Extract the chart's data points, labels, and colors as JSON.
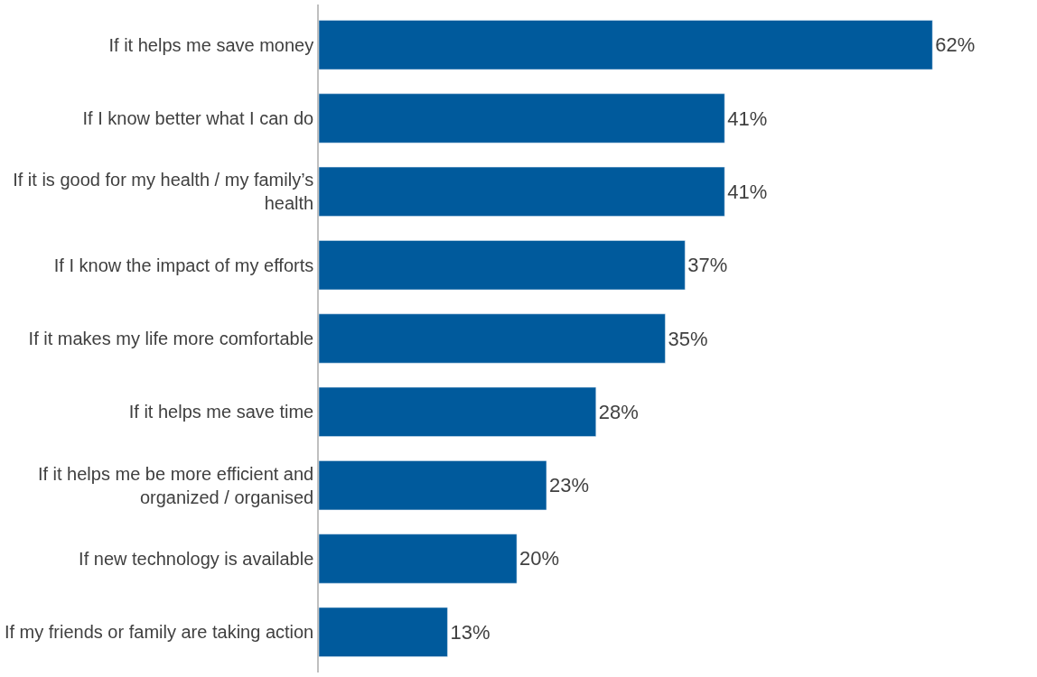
{
  "chart_data": {
    "type": "bar",
    "orientation": "horizontal",
    "categories": [
      "If it helps me save money",
      "If I know better what I can do",
      "If it is good for my health / my family’s health",
      "If I know the impact of my efforts",
      "If it makes my life more comfortable",
      "If it helps me save time",
      "If it helps me be more efficient and organized / organised",
      "If new technology is available",
      "If my friends or family are taking action"
    ],
    "values": [
      62,
      41,
      41,
      37,
      35,
      28,
      23,
      20,
      13
    ],
    "value_labels": [
      "62%",
      "41%",
      "41%",
      "37%",
      "35%",
      "28%",
      "23%",
      "20%",
      "13%"
    ],
    "color": "#005a9c",
    "legend": false
  }
}
